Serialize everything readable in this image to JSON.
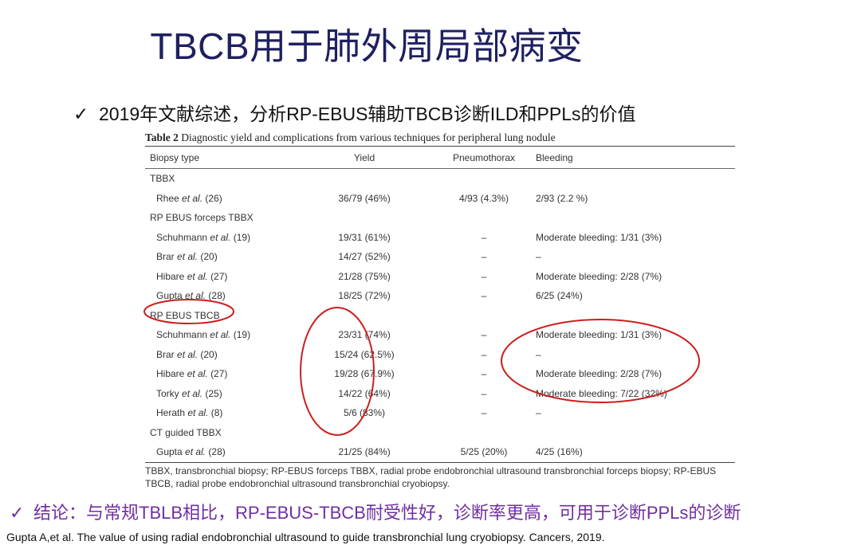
{
  "title": "TBCB用于肺外周局部病变",
  "bullet": {
    "check": "✓",
    "text": "2019年文献综述，分析RP-EBUS辅助TBCB诊断ILD和PPLs的价值"
  },
  "table": {
    "caption_label": "Table 2",
    "caption_text": "Diagnostic yield and complications from various techniques for peripheral lung nodule",
    "headers": [
      "Biopsy type",
      "Yield",
      "Pneumothorax",
      "Bleeding"
    ],
    "groups": [
      {
        "name": "TBBX",
        "rows": [
          {
            "author": "Rhee",
            "etal": "et al.",
            "ref": "(26)",
            "yield": "36/79 (46%)",
            "pneumothorax": "4/93 (4.3%)",
            "bleeding": "2/93 (2.2 %)"
          }
        ]
      },
      {
        "name": "RP EBUS forceps TBBX",
        "rows": [
          {
            "author": "Schuhmann",
            "etal": "et al.",
            "ref": "(19)",
            "yield": "19/31 (61%)",
            "pneumothorax": "–",
            "bleeding": "Moderate bleeding: 1/31 (3%)"
          },
          {
            "author": "Brar",
            "etal": "et al.",
            "ref": "(20)",
            "yield": "14/27 (52%)",
            "pneumothorax": "–",
            "bleeding": "–"
          },
          {
            "author": "Hibare",
            "etal": "et al.",
            "ref": "(27)",
            "yield": "21/28 (75%)",
            "pneumothorax": "–",
            "bleeding": "Moderate bleeding: 2/28 (7%)"
          },
          {
            "author": "Gupta",
            "etal": "et al.",
            "ref": "(28)",
            "yield": "18/25 (72%)",
            "pneumothorax": "–",
            "bleeding": "6/25 (24%)"
          }
        ]
      },
      {
        "name": "RP EBUS TBCB",
        "rows": [
          {
            "author": "Schuhmann",
            "etal": "et al.",
            "ref": "(19)",
            "yield": "23/31 (74%)",
            "pneumothorax": "–",
            "bleeding": "Moderate bleeding: 1/31 (3%)"
          },
          {
            "author": "Brar",
            "etal": "et al.",
            "ref": "(20)",
            "yield": "15/24 (62.5%)",
            "pneumothorax": "–",
            "bleeding": "–"
          },
          {
            "author": "Hibare",
            "etal": "et al.",
            "ref": "(27)",
            "yield": "19/28 (67.9%)",
            "pneumothorax": "–",
            "bleeding": "Moderate bleeding: 2/28 (7%)"
          },
          {
            "author": "Torky",
            "etal": "et al.",
            "ref": "(25)",
            "yield": "14/22 (64%)",
            "pneumothorax": "–",
            "bleeding": "Moderate bleeding: 7/22 (32%)"
          },
          {
            "author": "Herath",
            "etal": "et al.",
            "ref": "(8)",
            "yield": "5/6 (83%)",
            "pneumothorax": "–",
            "bleeding": "–"
          }
        ]
      },
      {
        "name": "CT guided TBBX",
        "rows": [
          {
            "author": "Gupta",
            "etal": "et al.",
            "ref": "(28)",
            "yield": "21/25 (84%)",
            "pneumothorax": "5/25 (20%)",
            "bleeding": "4/25 (16%)"
          }
        ]
      }
    ],
    "footnote": "TBBX, transbronchial biopsy; RP-EBUS forceps TBBX, radial probe endobronchial ultrasound transbronchial forceps biopsy; RP-EBUS TBCB, radial probe endobronchial ultrasound transbronchial cryobiopsy."
  },
  "conclusion": {
    "check": "✓",
    "text": "结论：与常规TBLB相比，RP-EBUS-TBCB耐受性好，诊断率更高，可用于诊断PPLs的诊断"
  },
  "reference": "Gupta A,et al. The value of using radial endobronchial ultrasound to guide transbronchial lung cryobiopsy. Cancers, 2019.",
  "colors": {
    "title": "#1f2060",
    "conclusion": "#7030a0",
    "annotation": "#cc1f1f"
  }
}
